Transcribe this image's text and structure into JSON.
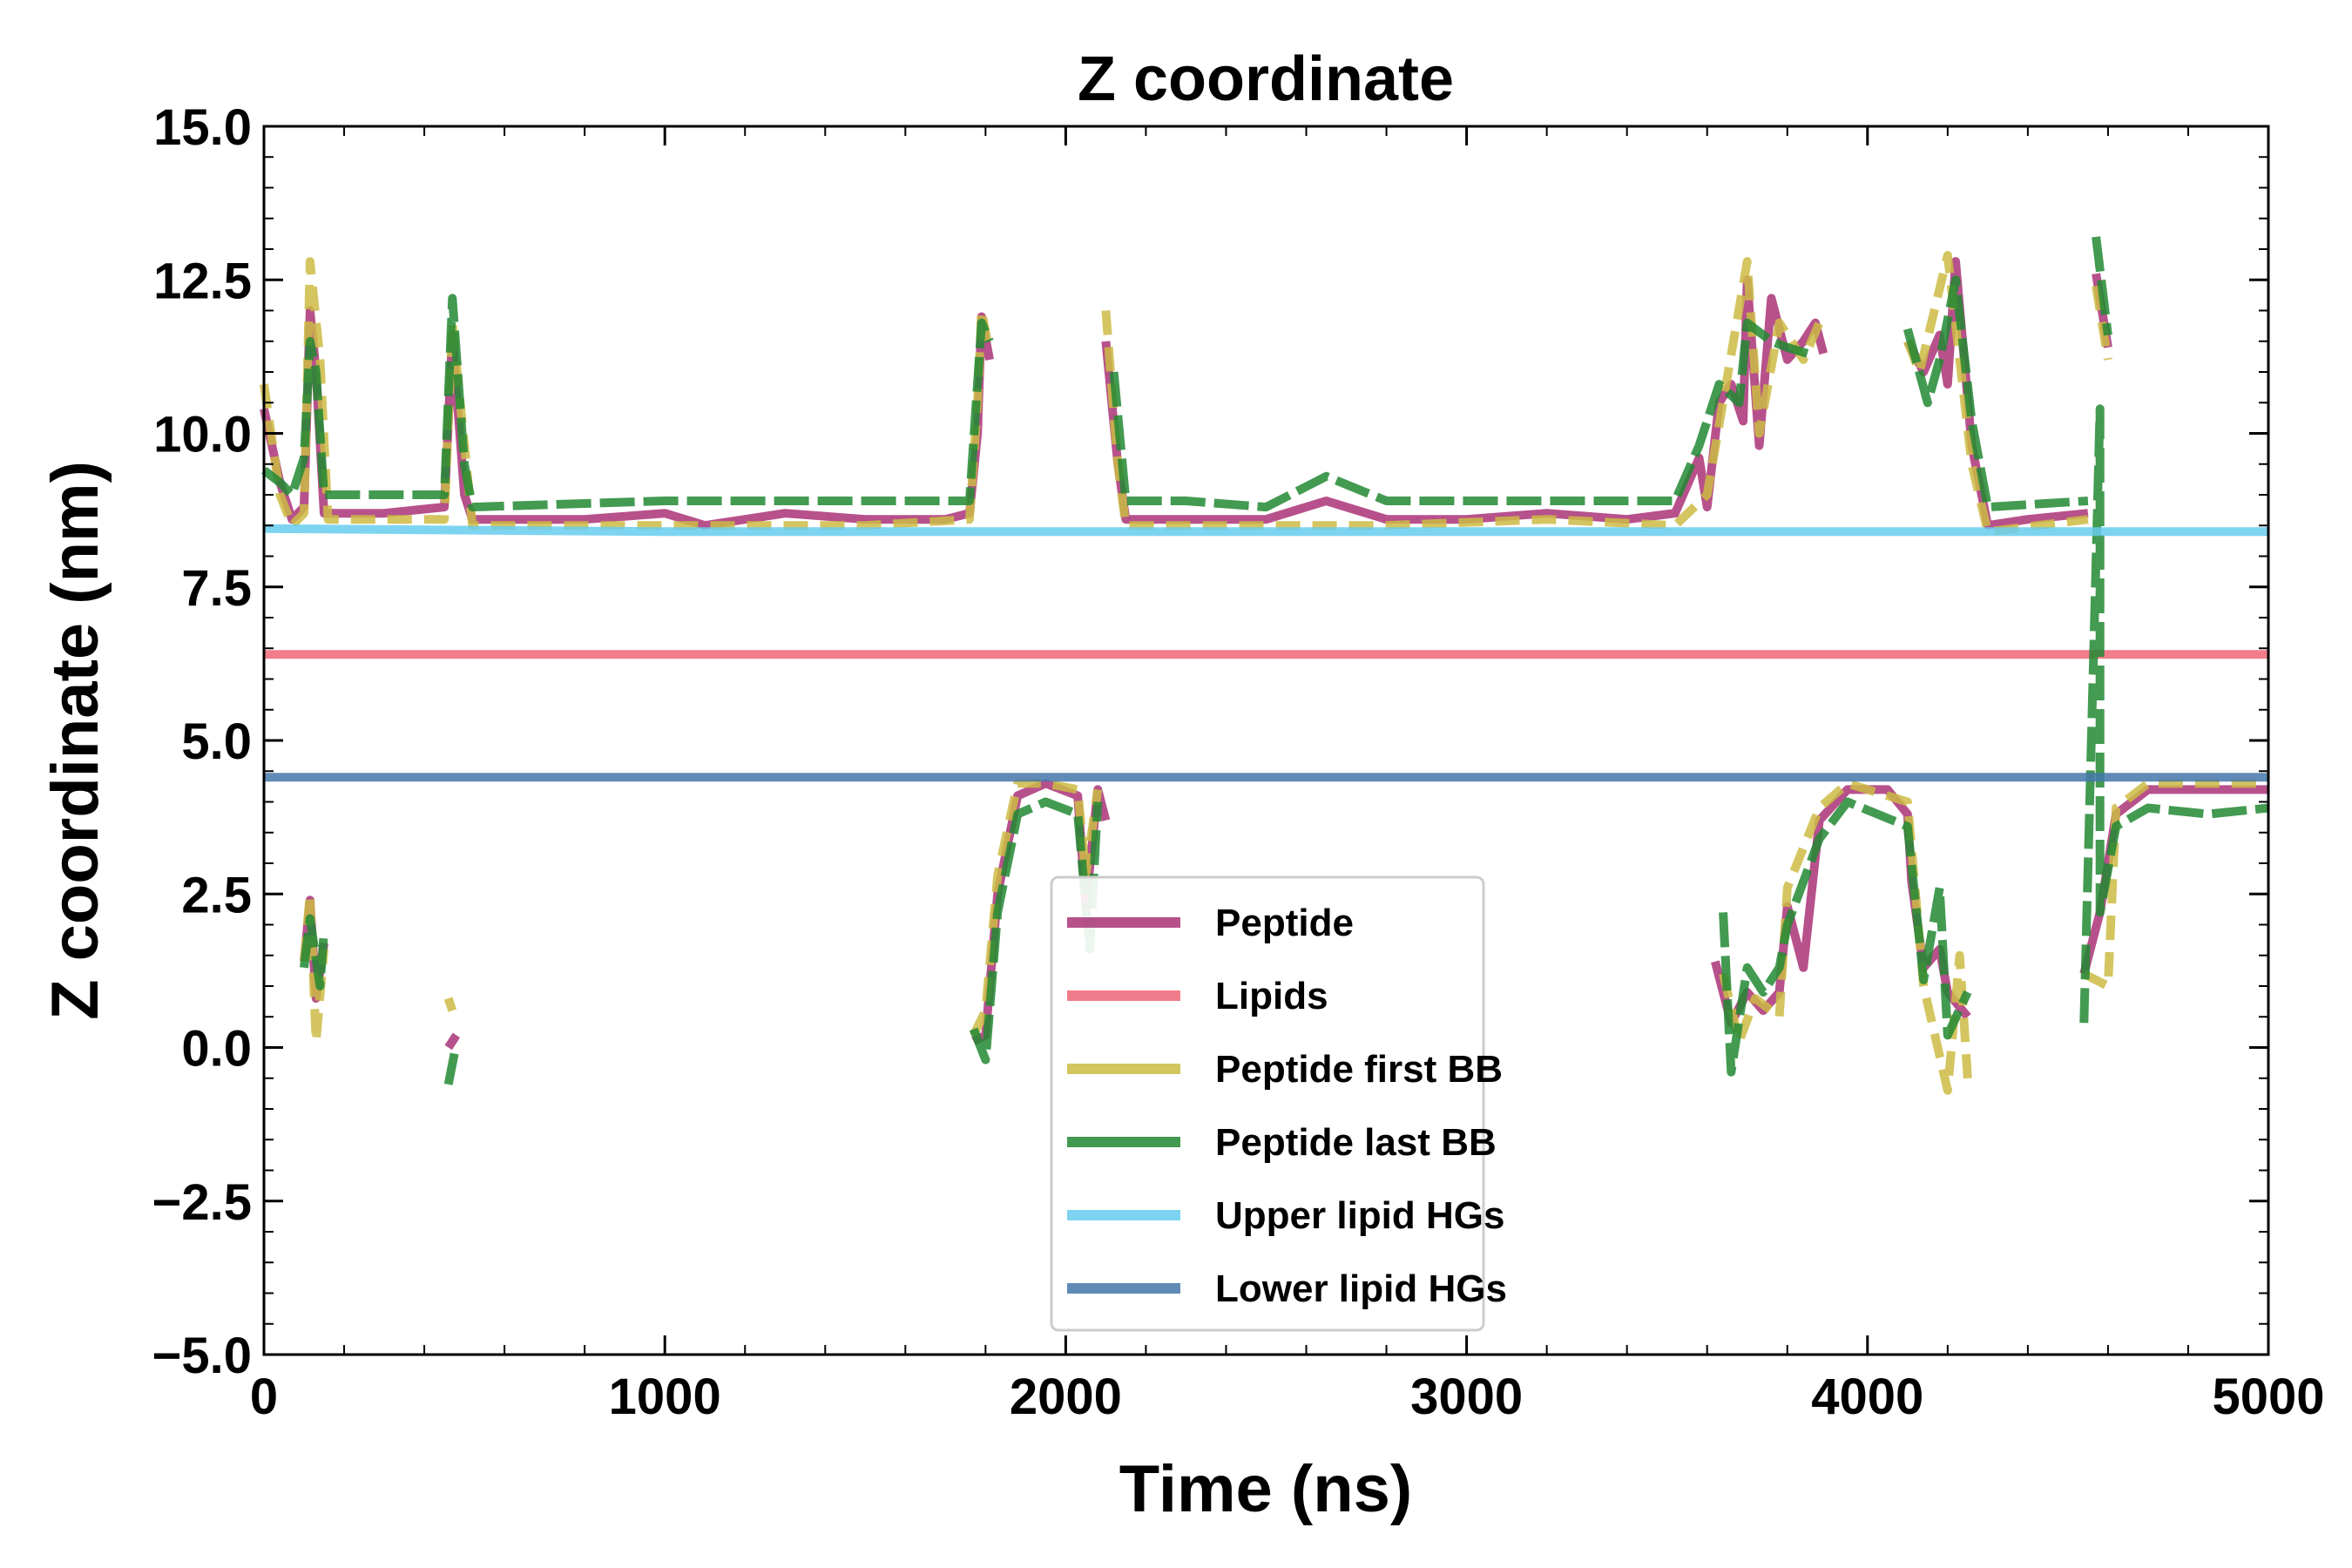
{
  "chart_data": {
    "type": "line",
    "title": "Z coordinate",
    "xlabel": "Time (ns)",
    "ylabel": "Z coordinate (nm)",
    "xlim": [
      0,
      5000
    ],
    "ylim": [
      -5.0,
      15.0
    ],
    "xticks": [
      0,
      1000,
      2000,
      3000,
      4000,
      5000
    ],
    "xtick_labels": [
      "0",
      "1000",
      "2000",
      "3000",
      "4000",
      "5000"
    ],
    "yticks": [
      -5.0,
      -2.5,
      0.0,
      2.5,
      5.0,
      7.5,
      10.0,
      12.5,
      15.0
    ],
    "ytick_labels": [
      "−5.0",
      "−2.5",
      "0.0",
      "2.5",
      "5.0",
      "7.5",
      "10.0",
      "12.5",
      "15.0"
    ],
    "grid": false,
    "legend_position": "center-bottom",
    "series": [
      {
        "name": "Peptide",
        "color": "#aa3377",
        "segments": [
          [
            [
              0,
              10.4
            ],
            [
              40,
              9.2
            ],
            [
              70,
              8.6
            ],
            [
              100,
              8.8
            ],
            [
              115,
              12.0
            ],
            [
              130,
              11.0
            ],
            [
              150,
              8.7
            ],
            [
              300,
              8.7
            ],
            [
              450,
              8.8
            ],
            [
              470,
              11.6
            ],
            [
              500,
              9.0
            ],
            [
              520,
              8.6
            ],
            [
              800,
              8.6
            ],
            [
              1000,
              8.7
            ],
            [
              1100,
              8.5
            ],
            [
              1300,
              8.7
            ],
            [
              1500,
              8.6
            ],
            [
              1700,
              8.6
            ],
            [
              1760,
              8.7
            ],
            [
              1780,
              10.0
            ],
            [
              1790,
              11.9
            ],
            [
              1810,
              11.2
            ]
          ],
          [
            [
              2100,
              11.5
            ],
            [
              2130,
              9.5
            ],
            [
              2150,
              8.6
            ],
            [
              2300,
              8.6
            ],
            [
              2500,
              8.6
            ],
            [
              2650,
              8.9
            ],
            [
              2800,
              8.6
            ],
            [
              3000,
              8.6
            ],
            [
              3200,
              8.7
            ],
            [
              3400,
              8.6
            ],
            [
              3520,
              8.7
            ],
            [
              3580,
              9.6
            ],
            [
              3600,
              8.8
            ],
            [
              3630,
              10.5
            ],
            [
              3660,
              10.8
            ],
            [
              3690,
              10.2
            ],
            [
              3700,
              12.5
            ],
            [
              3730,
              9.8
            ],
            [
              3760,
              12.2
            ],
            [
              3800,
              11.2
            ],
            [
              3840,
              11.5
            ],
            [
              3870,
              11.8
            ],
            [
              3890,
              11.3
            ]
          ],
          [
            [
              4100,
              11.5
            ],
            [
              4140,
              11.0
            ],
            [
              4180,
              11.6
            ],
            [
              4200,
              10.8
            ],
            [
              4220,
              12.8
            ],
            [
              4260,
              9.8
            ],
            [
              4300,
              8.5
            ],
            [
              4400,
              8.6
            ],
            [
              4550,
              8.7
            ]
          ],
          [
            [
              4570,
              12.6
            ],
            [
              4600,
              11.4
            ]
          ],
          [
            [
              100,
              1.4
            ],
            [
              115,
              2.4
            ],
            [
              130,
              0.8
            ],
            [
              150,
              1.7
            ]
          ],
          [
            [
              460,
              0.0
            ],
            [
              480,
              0.2
            ]
          ],
          [
            [
              1770,
              0.1
            ],
            [
              1800,
              0.2
            ],
            [
              1830,
              2.5
            ],
            [
              1880,
              4.1
            ],
            [
              1950,
              4.3
            ],
            [
              2030,
              4.1
            ],
            [
              2050,
              2.3
            ],
            [
              2080,
              4.2
            ],
            [
              2100,
              3.7
            ]
          ],
          [
            [
              3620,
              1.4
            ],
            [
              3660,
              0.4
            ],
            [
              3700,
              0.9
            ],
            [
              3740,
              0.6
            ],
            [
              3780,
              0.9
            ],
            [
              3800,
              2.3
            ],
            [
              3840,
              1.3
            ],
            [
              3880,
              3.7
            ],
            [
              3950,
              4.2
            ],
            [
              4050,
              4.2
            ],
            [
              4100,
              3.8
            ],
            [
              4110,
              2.7
            ],
            [
              4140,
              1.3
            ],
            [
              4180,
              1.6
            ],
            [
              4200,
              0.9
            ],
            [
              4250,
              0.5
            ]
          ],
          [
            [
              4540,
              1.2
            ],
            [
              4580,
              2.2
            ],
            [
              4620,
              3.8
            ],
            [
              4700,
              4.2
            ],
            [
              4850,
              4.2
            ],
            [
              5000,
              4.2
            ]
          ]
        ]
      },
      {
        "name": "Lipids",
        "color": "#ee6677",
        "segments": [
          [
            [
              0,
              6.4
            ],
            [
              1000,
              6.4
            ],
            [
              2000,
              6.4
            ],
            [
              3000,
              6.4
            ],
            [
              4000,
              6.4
            ],
            [
              5000,
              6.4
            ]
          ]
        ]
      },
      {
        "name": "Peptide first BB",
        "color": "#ccbb44",
        "segments": [
          [
            [
              0,
              10.8
            ],
            [
              40,
              9.0
            ],
            [
              70,
              8.5
            ],
            [
              100,
              8.7
            ],
            [
              115,
              12.8
            ],
            [
              140,
              11.2
            ],
            [
              160,
              8.6
            ],
            [
              450,
              8.6
            ],
            [
              470,
              11.8
            ],
            [
              520,
              8.5
            ],
            [
              1000,
              8.5
            ],
            [
              1500,
              8.5
            ],
            [
              1760,
              8.6
            ],
            [
              1780,
              10.5
            ],
            [
              1790,
              12.0
            ],
            [
              1810,
              11.3
            ]
          ],
          [
            [
              2100,
              12.0
            ],
            [
              2130,
              9.5
            ],
            [
              2150,
              8.5
            ],
            [
              2500,
              8.5
            ],
            [
              2800,
              8.5
            ],
            [
              3200,
              8.6
            ],
            [
              3520,
              8.5
            ],
            [
              3600,
              9.0
            ],
            [
              3700,
              12.8
            ],
            [
              3730,
              10.0
            ],
            [
              3780,
              11.8
            ],
            [
              3840,
              11.2
            ],
            [
              3880,
              11.8
            ]
          ],
          [
            [
              4100,
              11.5
            ],
            [
              4130,
              11.0
            ],
            [
              4200,
              12.9
            ],
            [
              4260,
              9.5
            ],
            [
              4300,
              8.4
            ],
            [
              4550,
              8.6
            ]
          ],
          [
            [
              4570,
              12.4
            ],
            [
              4600,
              11.2
            ]
          ],
          [
            [
              100,
              1.4
            ],
            [
              115,
              2.5
            ],
            [
              130,
              0.1
            ],
            [
              150,
              1.6
            ]
          ],
          [
            [
              460,
              0.8
            ],
            [
              470,
              0.6
            ]
          ],
          [
            [
              1770,
              0.2
            ],
            [
              1800,
              0.6
            ],
            [
              1830,
              2.8
            ],
            [
              1880,
              4.3
            ],
            [
              1950,
              4.3
            ],
            [
              2030,
              4.2
            ],
            [
              2050,
              2.8
            ],
            [
              2080,
              4.2
            ]
          ],
          [
            [
              3640,
              1.2
            ],
            [
              3680,
              0.1
            ],
            [
              3720,
              0.8
            ],
            [
              3780,
              0.5
            ],
            [
              3800,
              2.6
            ],
            [
              3880,
              3.9
            ],
            [
              3950,
              4.3
            ],
            [
              4100,
              4.0
            ],
            [
              4140,
              1.0
            ],
            [
              4200,
              -0.7
            ],
            [
              4230,
              1.5
            ],
            [
              4250,
              -0.5
            ]
          ],
          [
            [
              4540,
              1.2
            ],
            [
              4600,
              1.0
            ],
            [
              4620,
              3.9
            ],
            [
              4700,
              4.3
            ],
            [
              5000,
              4.3
            ]
          ]
        ]
      },
      {
        "name": "Peptide last BB",
        "color": "#228833",
        "segments": [
          [
            [
              0,
              9.4
            ],
            [
              40,
              9.2
            ],
            [
              70,
              9.0
            ],
            [
              100,
              9.6
            ],
            [
              115,
              11.5
            ],
            [
              130,
              11.0
            ],
            [
              150,
              9.0
            ],
            [
              300,
              9.0
            ],
            [
              450,
              9.0
            ],
            [
              470,
              12.2
            ],
            [
              500,
              9.5
            ],
            [
              520,
              8.8
            ],
            [
              1000,
              8.9
            ],
            [
              1500,
              8.9
            ],
            [
              1760,
              8.9
            ],
            [
              1790,
              11.8
            ],
            [
              1810,
              11.5
            ]
          ],
          [
            [
              2120,
              11.0
            ],
            [
              2150,
              8.9
            ],
            [
              2300,
              8.9
            ],
            [
              2500,
              8.8
            ],
            [
              2650,
              9.3
            ],
            [
              2800,
              8.9
            ],
            [
              3000,
              8.9
            ],
            [
              3400,
              8.9
            ],
            [
              3520,
              8.9
            ],
            [
              3580,
              9.8
            ],
            [
              3630,
              10.8
            ],
            [
              3680,
              10.5
            ],
            [
              3700,
              11.8
            ],
            [
              3760,
              11.5
            ],
            [
              3800,
              11.4
            ],
            [
              3850,
              11.3
            ]
          ],
          [
            [
              4100,
              11.7
            ],
            [
              4150,
              10.5
            ],
            [
              4180,
              11.2
            ],
            [
              4220,
              12.5
            ],
            [
              4260,
              10.2
            ],
            [
              4300,
              8.8
            ],
            [
              4550,
              8.9
            ]
          ],
          [
            [
              4570,
              13.2
            ],
            [
              4600,
              11.6
            ]
          ],
          [
            [
              100,
              1.3
            ],
            [
              115,
              2.1
            ],
            [
              140,
              1.0
            ],
            [
              150,
              1.9
            ]
          ],
          [
            [
              460,
              -0.6
            ],
            [
              475,
              -0.1
            ]
          ],
          [
            [
              1770,
              0.3
            ],
            [
              1800,
              -0.2
            ],
            [
              1830,
              2.2
            ],
            [
              1880,
              3.8
            ],
            [
              1950,
              4.0
            ],
            [
              2030,
              3.8
            ],
            [
              2060,
              1.6
            ],
            [
              2080,
              4.0
            ]
          ],
          [
            [
              3640,
              2.2
            ],
            [
              3660,
              -0.4
            ],
            [
              3700,
              1.3
            ],
            [
              3740,
              0.9
            ],
            [
              3780,
              1.3
            ],
            [
              3800,
              2.0
            ],
            [
              3880,
              3.4
            ],
            [
              3950,
              4.0
            ],
            [
              4100,
              3.6
            ],
            [
              4140,
              1.1
            ],
            [
              4180,
              2.6
            ],
            [
              4200,
              0.2
            ],
            [
              4250,
              0.9
            ]
          ],
          [
            [
              4540,
              0.4
            ],
            [
              4580,
              10.4
            ],
            [
              4580,
              2.2
            ],
            [
              4620,
              3.6
            ],
            [
              4700,
              3.9
            ],
            [
              4850,
              3.8
            ],
            [
              5000,
              3.9
            ]
          ]
        ]
      },
      {
        "name": "Upper lipid HGs",
        "color": "#66ccee",
        "segments": [
          [
            [
              0,
              8.45
            ],
            [
              1000,
              8.4
            ],
            [
              2000,
              8.4
            ],
            [
              3000,
              8.4
            ],
            [
              4000,
              8.4
            ],
            [
              5000,
              8.4
            ]
          ]
        ]
      },
      {
        "name": "Lower lipid HGs",
        "color": "#4477aa",
        "segments": [
          [
            [
              0,
              4.4
            ],
            [
              1000,
              4.4
            ],
            [
              2000,
              4.4
            ],
            [
              3000,
              4.4
            ],
            [
              4000,
              4.4
            ],
            [
              5000,
              4.4
            ]
          ]
        ]
      }
    ]
  }
}
